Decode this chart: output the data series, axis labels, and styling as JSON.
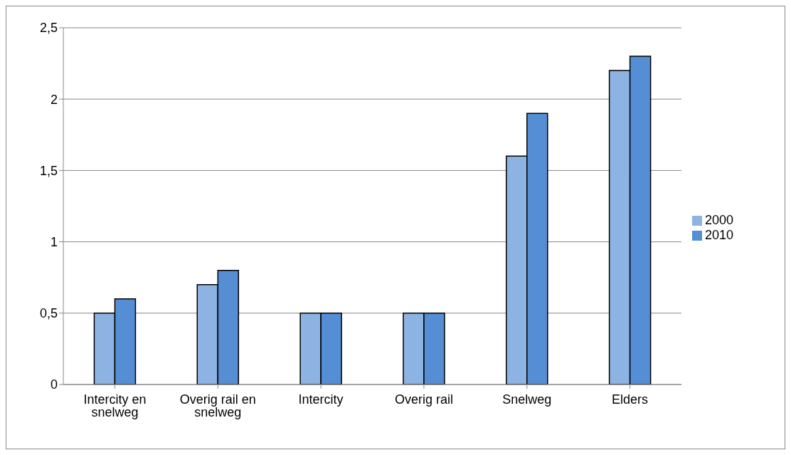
{
  "chart_data": {
    "type": "bar",
    "categories": [
      "Intercity en snelweg",
      "Overig rail en snelweg",
      "Intercity",
      "Overig rail",
      "Snelweg",
      "Elders"
    ],
    "series": [
      {
        "name": "2000",
        "color": "#8db3e2",
        "values": [
          0.5,
          0.7,
          0.5,
          0.5,
          1.6,
          2.2
        ]
      },
      {
        "name": "2010",
        "color": "#558ed5",
        "values": [
          0.6,
          0.8,
          0.5,
          0.5,
          1.9,
          2.3
        ]
      }
    ],
    "ylim": [
      0,
      2.5
    ],
    "yticks": [
      0,
      {
        "value": 0.5,
        "label": "0,5"
      },
      1,
      {
        "value": 1.5,
        "label": "1,5"
      },
      2,
      {
        "value": 2.5,
        "label": "2,5"
      }
    ],
    "grid": "y",
    "legend": "right"
  }
}
